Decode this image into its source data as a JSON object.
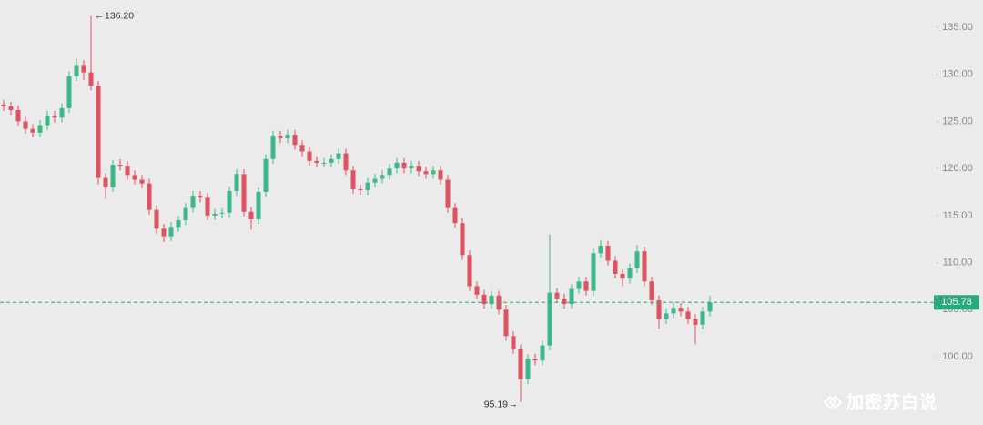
{
  "chart_data": {
    "type": "candlestick",
    "series": [
      {
        "up_color": "#3db88b",
        "down_color": "#e0525f",
        "open": [
          126.8,
          126.6,
          126.2,
          125.0,
          124.2,
          123.8,
          124.6,
          125.6,
          125.4,
          126.4,
          129.8,
          131.0,
          130.2,
          128.8,
          119.0,
          118.0,
          120.4,
          120.3,
          119.3,
          118.8,
          118.4,
          115.6,
          113.6,
          112.8,
          113.8,
          114.5,
          115.8,
          117.1,
          116.9,
          115.0,
          115.2,
          115.3,
          117.6,
          119.4,
          115.4,
          114.6,
          117.5,
          121.0,
          123.5,
          123.2,
          123.6,
          122.5,
          121.8,
          120.8,
          120.6,
          120.6,
          121.0,
          121.6,
          119.8,
          117.8,
          117.7,
          118.5,
          118.9,
          119.3,
          120.0,
          120.6,
          120.0,
          120.3,
          119.7,
          119.4,
          119.8,
          118.8,
          115.8,
          114.2,
          110.8,
          107.5,
          106.6,
          105.6,
          106.5,
          105.0,
          102.2,
          100.8,
          97.6,
          99.8,
          99.6,
          101.2,
          106.8,
          106.2,
          105.6,
          107.2,
          108.0,
          107.0,
          111.0,
          111.8,
          110.2,
          108.8,
          108.3,
          109.4,
          111.2,
          108.0,
          106.0,
          104.0,
          104.6,
          105.2,
          104.8,
          104.0,
          103.4,
          104.8
        ],
        "high": [
          127.3,
          127.1,
          126.7,
          125.5,
          124.7,
          125.1,
          126.1,
          126.1,
          126.9,
          130.3,
          131.7,
          131.5,
          136.2,
          129.3,
          119.5,
          120.9,
          121.0,
          120.8,
          119.8,
          119.3,
          118.9,
          116.1,
          114.1,
          114.3,
          115.0,
          116.3,
          117.6,
          117.6,
          117.4,
          115.7,
          115.8,
          118.1,
          119.9,
          119.9,
          115.9,
          118.0,
          121.5,
          124.0,
          124.0,
          124.1,
          124.1,
          123.0,
          122.3,
          121.3,
          121.1,
          121.5,
          122.1,
          122.1,
          120.3,
          118.3,
          119.0,
          119.4,
          119.8,
          120.5,
          121.1,
          121.1,
          120.8,
          120.8,
          120.2,
          120.3,
          120.3,
          119.3,
          116.3,
          114.7,
          111.3,
          108.0,
          107.1,
          107.0,
          107.0,
          105.5,
          102.7,
          101.3,
          100.3,
          100.3,
          101.7,
          113.0,
          107.3,
          106.7,
          107.7,
          108.5,
          108.5,
          111.5,
          112.4,
          112.3,
          110.7,
          109.3,
          109.9,
          111.9,
          111.7,
          108.5,
          106.5,
          105.1,
          105.7,
          105.7,
          105.3,
          104.5,
          105.3,
          106.5
        ],
        "low": [
          126.1,
          125.7,
          124.5,
          123.7,
          123.3,
          123.3,
          124.1,
          124.9,
          124.9,
          125.9,
          129.3,
          129.4,
          128.3,
          118.3,
          116.8,
          117.5,
          119.8,
          118.8,
          118.3,
          117.9,
          115.1,
          113.1,
          112.2,
          112.3,
          113.3,
          114.0,
          115.3,
          116.4,
          114.5,
          114.5,
          114.7,
          114.8,
          117.1,
          114.9,
          113.5,
          114.1,
          117.0,
          120.5,
          122.7,
          122.7,
          122.0,
          121.3,
          120.3,
          120.1,
          120.1,
          120.1,
          120.5,
          119.3,
          117.3,
          117.2,
          117.2,
          118.0,
          118.4,
          118.8,
          119.5,
          119.5,
          119.5,
          119.2,
          118.9,
          118.9,
          118.3,
          115.3,
          113.7,
          110.3,
          107.0,
          106.1,
          105.1,
          105.1,
          104.5,
          101.7,
          100.3,
          95.19,
          97.1,
          99.1,
          99.1,
          100.7,
          105.7,
          105.1,
          105.1,
          106.7,
          106.5,
          106.5,
          110.5,
          109.7,
          108.3,
          107.5,
          107.8,
          108.9,
          107.5,
          105.5,
          103.0,
          103.5,
          104.1,
          104.3,
          103.5,
          101.3,
          102.9,
          104.3
        ],
        "close": [
          126.6,
          126.2,
          125.0,
          124.2,
          123.8,
          124.6,
          125.6,
          125.4,
          126.4,
          129.8,
          131.0,
          130.2,
          128.8,
          119.0,
          118.0,
          120.4,
          120.3,
          119.3,
          118.8,
          118.4,
          115.6,
          113.6,
          112.8,
          113.8,
          114.5,
          115.8,
          117.1,
          116.9,
          115.0,
          115.2,
          115.3,
          117.6,
          119.4,
          115.4,
          114.6,
          117.5,
          121.0,
          123.5,
          123.2,
          123.6,
          122.5,
          121.8,
          120.8,
          120.6,
          120.6,
          121.0,
          121.6,
          119.8,
          117.8,
          117.7,
          118.5,
          118.9,
          119.3,
          120.0,
          120.6,
          120.0,
          120.3,
          119.7,
          119.4,
          119.8,
          118.8,
          115.8,
          114.2,
          110.8,
          107.5,
          106.6,
          105.6,
          106.5,
          105.0,
          102.2,
          100.8,
          97.6,
          99.8,
          99.6,
          101.2,
          106.8,
          106.2,
          105.6,
          107.2,
          108.0,
          107.0,
          111.0,
          111.8,
          110.2,
          108.8,
          108.3,
          109.4,
          111.2,
          108.0,
          106.0,
          104.0,
          104.6,
          105.2,
          104.8,
          104.0,
          103.4,
          104.8,
          105.78
        ]
      }
    ],
    "ylim": [
      92.75,
      137.9
    ],
    "yticks": [
      {
        "value": 100,
        "label": "100.00"
      },
      {
        "value": 105,
        "label": "105.00"
      },
      {
        "value": 110,
        "label": "110.00"
      },
      {
        "value": 115,
        "label": "115.00"
      },
      {
        "value": 120,
        "label": "120.00"
      },
      {
        "value": 125,
        "label": "125.00"
      },
      {
        "value": 130,
        "label": "130.00"
      },
      {
        "value": 135,
        "label": "135.00"
      }
    ],
    "last_price": 105.78,
    "last_price_color": "#2aa87e",
    "high_annotation": {
      "value": 136.2,
      "label": "136.20"
    },
    "low_annotation": {
      "value": 95.19,
      "label": "95.19"
    },
    "watermark": "加密苏白说"
  }
}
